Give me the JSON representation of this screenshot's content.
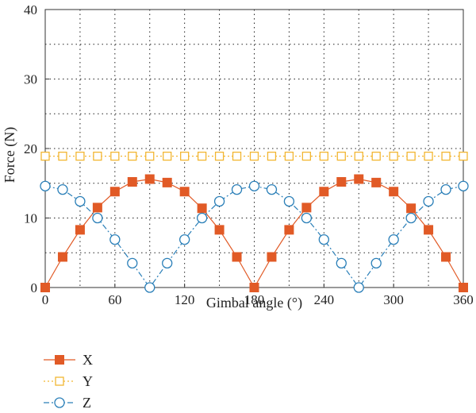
{
  "chart_data": {
    "type": "line",
    "xlabel": "Gimbal angle (°)",
    "ylabel": "Force (N)",
    "xlim": [
      0,
      360
    ],
    "ylim": [
      0,
      40
    ],
    "xticks": [
      0,
      60,
      120,
      180,
      240,
      300,
      360
    ],
    "yticks": [
      0,
      10,
      20,
      30,
      40
    ],
    "grid": true,
    "grid_style": "dotted",
    "legend_position": "bottom-left",
    "x": [
      0,
      15,
      30,
      45,
      60,
      75,
      90,
      105,
      120,
      135,
      150,
      165,
      180,
      195,
      210,
      225,
      240,
      255,
      270,
      285,
      300,
      315,
      330,
      345,
      360
    ],
    "series": [
      {
        "name": "X",
        "color": "#e15a26",
        "marker": "filled-square",
        "line": "solid",
        "values": [
          0,
          4.4,
          8.3,
          11.5,
          13.8,
          15.2,
          15.6,
          15.1,
          13.8,
          11.4,
          8.3,
          4.4,
          0,
          4.4,
          8.3,
          11.5,
          13.8,
          15.2,
          15.6,
          15.1,
          13.8,
          11.4,
          8.3,
          4.4,
          0
        ]
      },
      {
        "name": "Y",
        "color": "#f2b632",
        "marker": "open-square",
        "line": "dotted",
        "values": [
          18.9,
          18.9,
          18.9,
          18.9,
          18.9,
          18.9,
          18.9,
          18.9,
          18.9,
          18.9,
          18.9,
          18.9,
          18.9,
          18.9,
          18.9,
          18.9,
          18.9,
          18.9,
          18.9,
          18.9,
          18.9,
          18.9,
          18.9,
          18.9,
          18.9
        ]
      },
      {
        "name": "Z",
        "color": "#2a7fb8",
        "marker": "open-circle",
        "line": "dash-dot",
        "values": [
          14.6,
          14.1,
          12.4,
          10.0,
          6.9,
          3.5,
          0,
          3.5,
          6.9,
          10.0,
          12.4,
          14.1,
          14.6,
          14.1,
          12.4,
          10.0,
          6.9,
          3.5,
          0,
          3.5,
          6.9,
          10.0,
          12.4,
          14.1,
          14.6
        ]
      }
    ]
  }
}
